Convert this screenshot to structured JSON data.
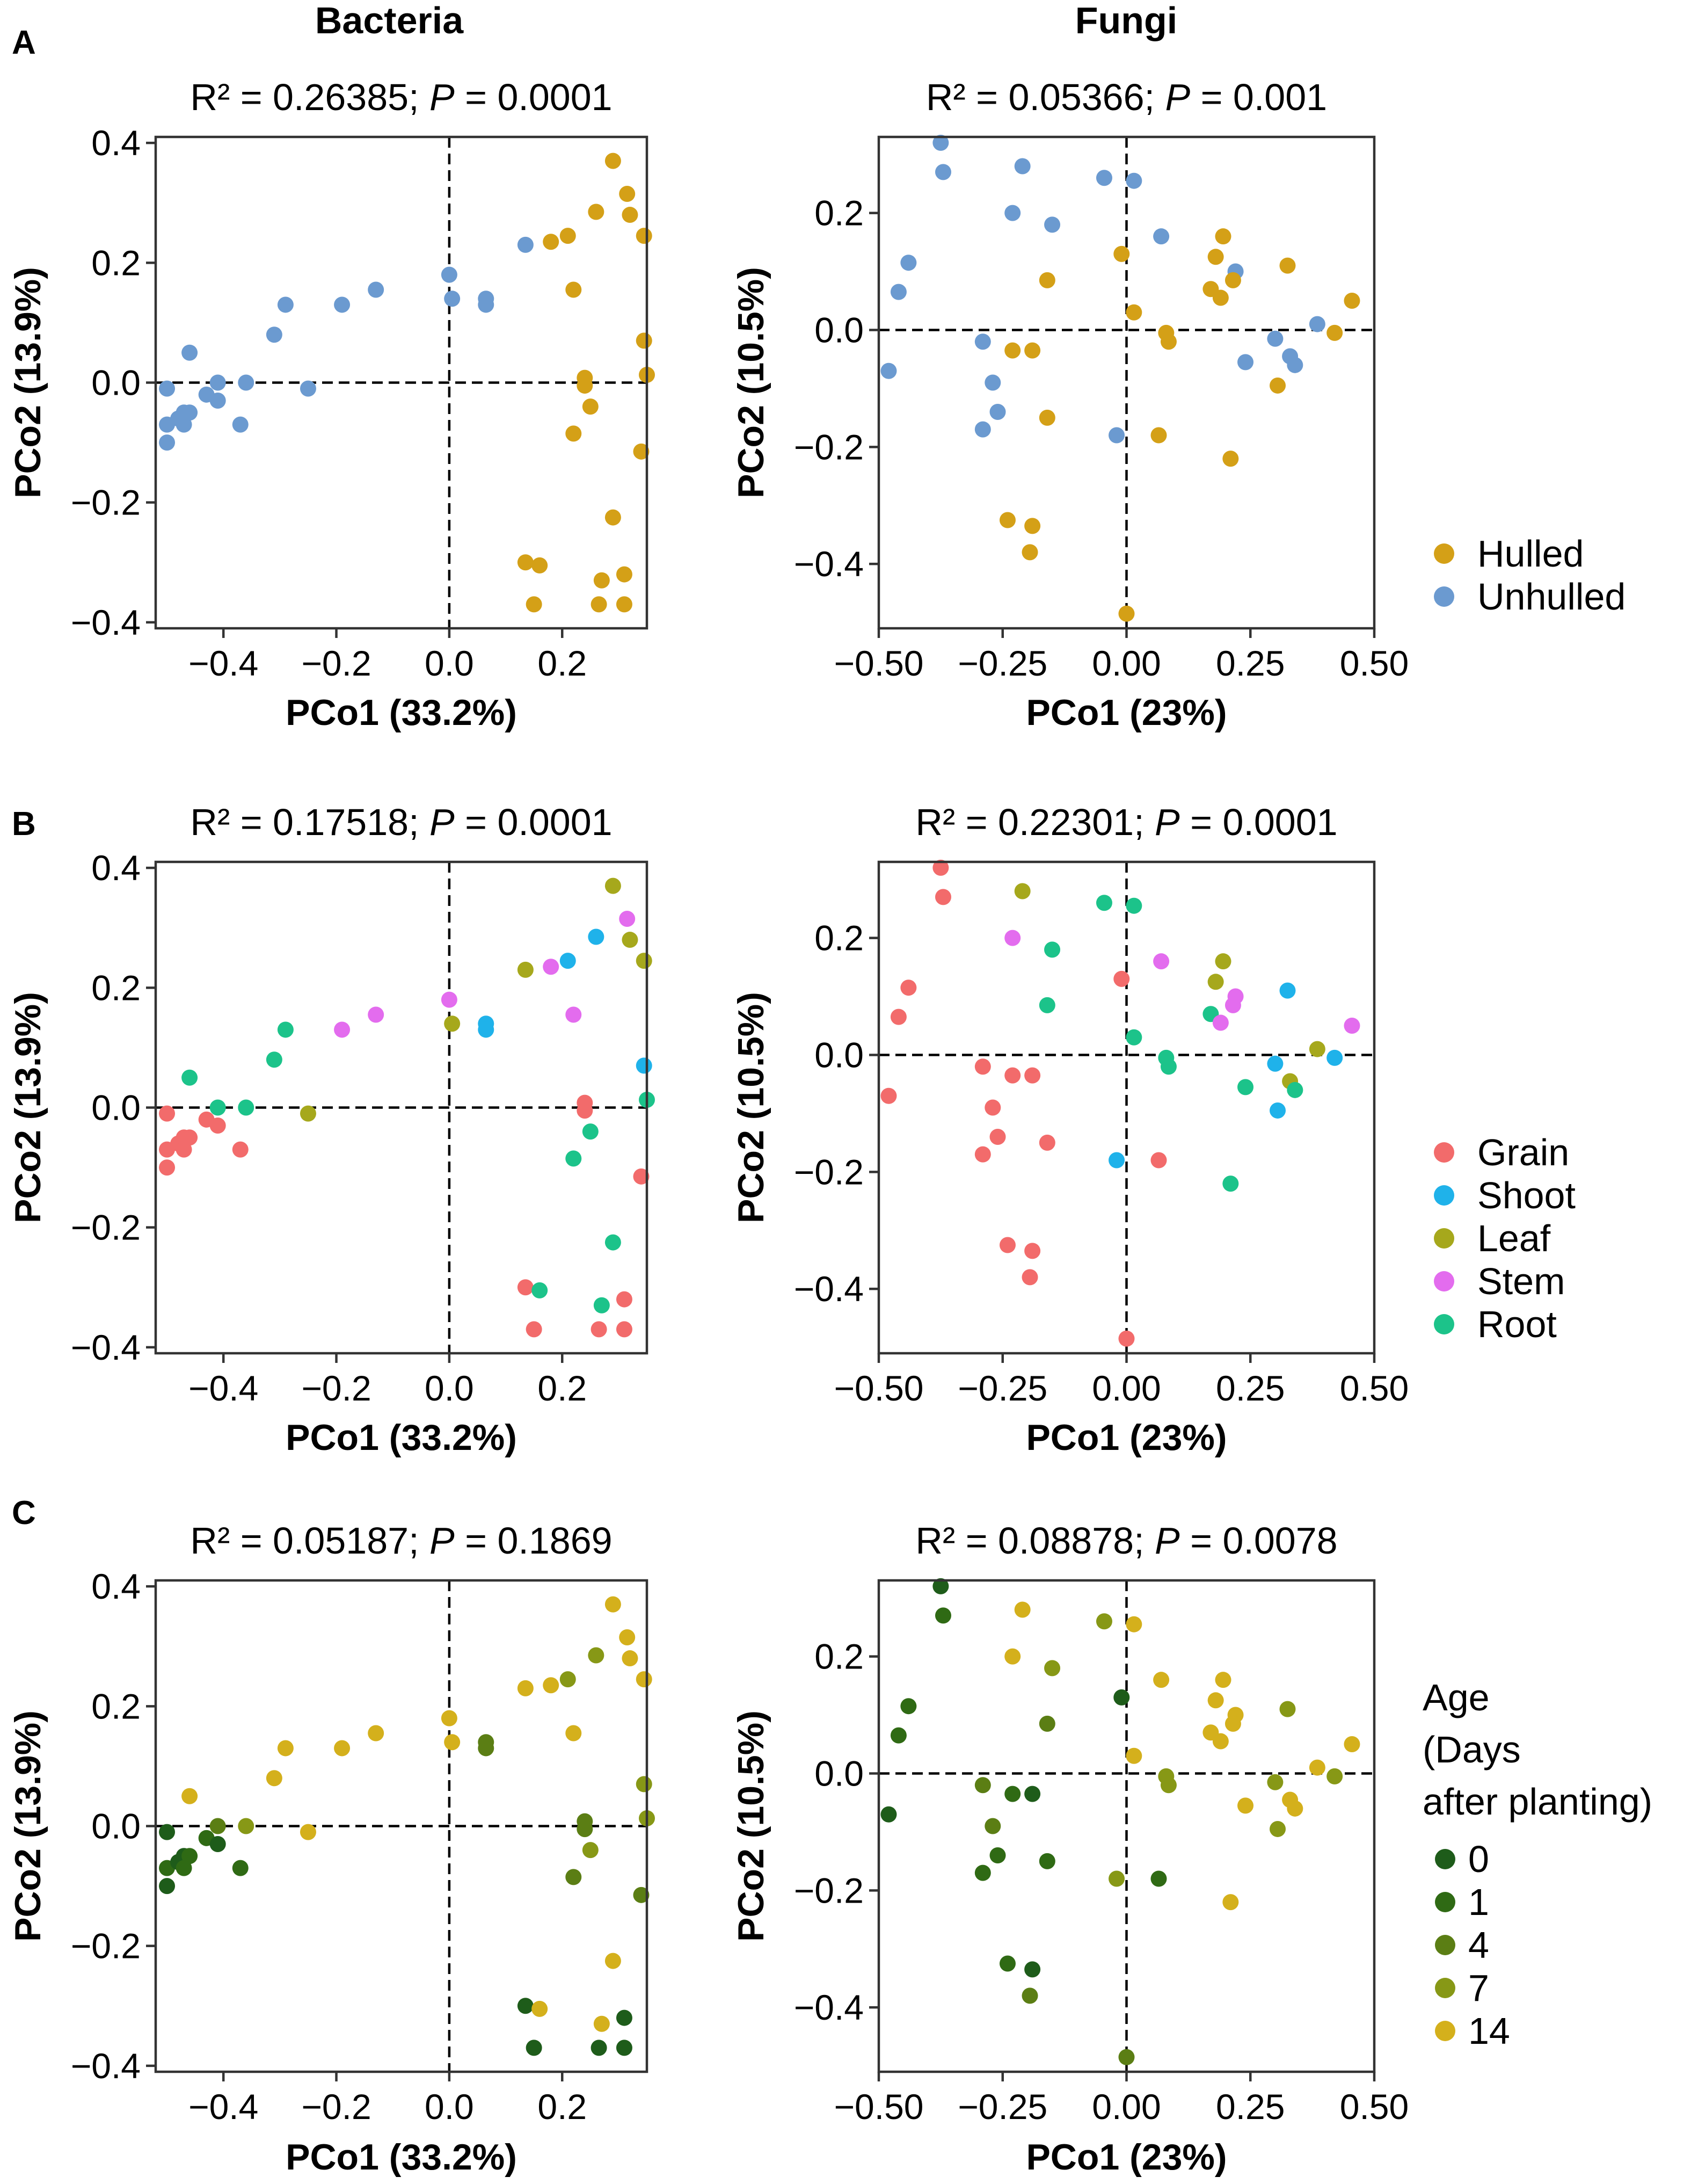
{
  "column_titles": [
    "Bacteria",
    "Fungi"
  ],
  "panel_labels": [
    "A",
    "B",
    "C"
  ],
  "palettes": {
    "type": {
      "Hulled": "#D4A017",
      "Unhulled": "#6B9AD0"
    },
    "compartment": {
      "Grain": "#F26B6B",
      "Shoot": "#1FB2EA",
      "Leaf": "#A6A81C",
      "Stem": "#E36CEE",
      "Root": "#1CC38A"
    },
    "age": {
      "0": "#1E5C1A",
      "1": "#2F6A14",
      "4": "#5B7E14",
      "7": "#879816",
      "14": "#D4B01C"
    }
  },
  "legends": {
    "A": {
      "title_lines": [],
      "entries": [
        "Hulled",
        "Unhulled"
      ]
    },
    "B": {
      "title_lines": [],
      "entries": [
        "Grain",
        "Shoot",
        "Leaf",
        "Stem",
        "Root"
      ]
    },
    "C": {
      "title_lines": [
        "Age",
        "(Days",
        "after planting)"
      ],
      "entries": [
        "0",
        "1",
        "4",
        "7",
        "14"
      ]
    }
  },
  "chart_data": {
    "type": "scatter",
    "panels": [
      {
        "id": "A-bacteria",
        "row": "A",
        "col": "bacteria",
        "color_by": "type",
        "stat": {
          "prefix": "R² = 0.26385; ",
          "p_label": "P",
          "suffix": " = 0.0001"
        }
      },
      {
        "id": "A-fungi",
        "row": "A",
        "col": "fungi",
        "color_by": "type",
        "stat": {
          "prefix": "R² = 0.05366; ",
          "p_label": "P",
          "suffix": " = 0.001"
        }
      },
      {
        "id": "B-bacteria",
        "row": "B",
        "col": "bacteria",
        "color_by": "compartment",
        "stat": {
          "prefix": "R² = 0.17518; ",
          "p_label": "P",
          "suffix": " = 0.0001"
        }
      },
      {
        "id": "B-fungi",
        "row": "B",
        "col": "fungi",
        "color_by": "compartment",
        "stat": {
          "prefix": "R² = 0.22301; ",
          "p_label": "P",
          "suffix": " = 0.0001"
        }
      },
      {
        "id": "C-bacteria",
        "row": "C",
        "col": "bacteria",
        "color_by": "age",
        "stat": {
          "prefix": "R² = 0.05187; ",
          "p_label": "P",
          "suffix": " = 0.1869"
        }
      },
      {
        "id": "C-fungi",
        "row": "C",
        "col": "fungi",
        "color_by": "age",
        "stat": {
          "prefix": "R² = 0.08878; ",
          "p_label": "P",
          "suffix": " = 0.0078"
        }
      }
    ],
    "bacteria": {
      "xlabel": "PCo1 (33.2%)",
      "ylabel": "PCo2  (13.9%)",
      "xlim": [
        -0.52,
        0.35
      ],
      "ylim": [
        -0.41,
        0.41
      ],
      "xticks": [
        -0.4,
        -0.2,
        0.0,
        0.2
      ],
      "xtick_labels": [
        "−0.4",
        "−0.2",
        "0.0",
        "0.2"
      ],
      "yticks": [
        -0.4,
        -0.2,
        0.0,
        0.2,
        0.4
      ],
      "ytick_labels": [
        "−0.4",
        "−0.2",
        "0.0",
        "0.2",
        "0.4"
      ],
      "points": [
        {
          "x": -0.5,
          "y": -0.01,
          "type": "Unhulled",
          "compartment": "Grain",
          "age": "0"
        },
        {
          "x": -0.5,
          "y": -0.07,
          "type": "Unhulled",
          "compartment": "Grain",
          "age": "1"
        },
        {
          "x": -0.5,
          "y": -0.1,
          "type": "Unhulled",
          "compartment": "Grain",
          "age": "0"
        },
        {
          "x": -0.48,
          "y": -0.06,
          "type": "Unhulled",
          "compartment": "Grain",
          "age": "0"
        },
        {
          "x": -0.47,
          "y": -0.05,
          "type": "Unhulled",
          "compartment": "Grain",
          "age": "0"
        },
        {
          "x": -0.47,
          "y": -0.07,
          "type": "Unhulled",
          "compartment": "Grain",
          "age": "1"
        },
        {
          "x": -0.46,
          "y": -0.05,
          "type": "Unhulled",
          "compartment": "Grain",
          "age": "1"
        },
        {
          "x": -0.46,
          "y": 0.05,
          "type": "Unhulled",
          "compartment": "Root",
          "age": "14"
        },
        {
          "x": -0.43,
          "y": -0.02,
          "type": "Unhulled",
          "compartment": "Grain",
          "age": "1"
        },
        {
          "x": -0.41,
          "y": 0.0,
          "type": "Unhulled",
          "compartment": "Root",
          "age": "4"
        },
        {
          "x": -0.41,
          "y": -0.03,
          "type": "Unhulled",
          "compartment": "Grain",
          "age": "0"
        },
        {
          "x": -0.37,
          "y": -0.07,
          "type": "Unhulled",
          "compartment": "Grain",
          "age": "1"
        },
        {
          "x": -0.36,
          "y": 0.0,
          "type": "Unhulled",
          "compartment": "Root",
          "age": "7"
        },
        {
          "x": -0.31,
          "y": 0.08,
          "type": "Unhulled",
          "compartment": "Root",
          "age": "14"
        },
        {
          "x": -0.29,
          "y": 0.13,
          "type": "Unhulled",
          "compartment": "Root",
          "age": "14"
        },
        {
          "x": -0.25,
          "y": -0.01,
          "type": "Unhulled",
          "compartment": "Leaf",
          "age": "14"
        },
        {
          "x": -0.19,
          "y": 0.13,
          "type": "Unhulled",
          "compartment": "Stem",
          "age": "14"
        },
        {
          "x": -0.13,
          "y": 0.155,
          "type": "Unhulled",
          "compartment": "Stem",
          "age": "14"
        },
        {
          "x": 0.0,
          "y": 0.18,
          "type": "Unhulled",
          "compartment": "Stem",
          "age": "14"
        },
        {
          "x": 0.005,
          "y": 0.14,
          "type": "Unhulled",
          "compartment": "Leaf",
          "age": "14"
        },
        {
          "x": 0.065,
          "y": 0.14,
          "type": "Unhulled",
          "compartment": "Shoot",
          "age": "4"
        },
        {
          "x": 0.065,
          "y": 0.13,
          "type": "Unhulled",
          "compartment": "Shoot",
          "age": "4"
        },
        {
          "x": 0.135,
          "y": 0.23,
          "type": "Unhulled",
          "compartment": "Leaf",
          "age": "14"
        },
        {
          "x": 0.18,
          "y": 0.235,
          "type": "Hulled",
          "compartment": "Stem",
          "age": "14"
        },
        {
          "x": 0.21,
          "y": 0.245,
          "type": "Hulled",
          "compartment": "Shoot",
          "age": "7"
        },
        {
          "x": 0.22,
          "y": 0.155,
          "type": "Hulled",
          "compartment": "Stem",
          "age": "14"
        },
        {
          "x": 0.26,
          "y": 0.285,
          "type": "Hulled",
          "compartment": "Shoot",
          "age": "7"
        },
        {
          "x": 0.29,
          "y": 0.37,
          "type": "Hulled",
          "compartment": "Leaf",
          "age": "14"
        },
        {
          "x": 0.315,
          "y": 0.315,
          "type": "Hulled",
          "compartment": "Stem",
          "age": "14"
        },
        {
          "x": 0.32,
          "y": 0.28,
          "type": "Hulled",
          "compartment": "Leaf",
          "age": "14"
        },
        {
          "x": 0.345,
          "y": 0.245,
          "type": "Hulled",
          "compartment": "Leaf",
          "age": "14"
        },
        {
          "x": 0.345,
          "y": 0.07,
          "type": "Hulled",
          "compartment": "Shoot",
          "age": "7"
        },
        {
          "x": 0.35,
          "y": 0.013,
          "type": "Hulled",
          "compartment": "Root",
          "age": "7"
        },
        {
          "x": 0.24,
          "y": 0.008,
          "type": "Hulled",
          "compartment": "Grain",
          "age": "4"
        },
        {
          "x": 0.24,
          "y": -0.005,
          "type": "Hulled",
          "compartment": "Grain",
          "age": "4"
        },
        {
          "x": 0.25,
          "y": -0.04,
          "type": "Hulled",
          "compartment": "Root",
          "age": "7"
        },
        {
          "x": 0.22,
          "y": -0.085,
          "type": "Hulled",
          "compartment": "Root",
          "age": "4"
        },
        {
          "x": 0.34,
          "y": -0.115,
          "type": "Hulled",
          "compartment": "Grain",
          "age": "4"
        },
        {
          "x": 0.29,
          "y": -0.225,
          "type": "Hulled",
          "compartment": "Root",
          "age": "14"
        },
        {
          "x": 0.135,
          "y": -0.3,
          "type": "Hulled",
          "compartment": "Grain",
          "age": "0"
        },
        {
          "x": 0.16,
          "y": -0.305,
          "type": "Hulled",
          "compartment": "Root",
          "age": "14"
        },
        {
          "x": 0.15,
          "y": -0.37,
          "type": "Hulled",
          "compartment": "Grain",
          "age": "0"
        },
        {
          "x": 0.27,
          "y": -0.33,
          "type": "Hulled",
          "compartment": "Root",
          "age": "14"
        },
        {
          "x": 0.31,
          "y": -0.32,
          "type": "Hulled",
          "compartment": "Grain",
          "age": "0"
        },
        {
          "x": 0.265,
          "y": -0.37,
          "type": "Hulled",
          "compartment": "Grain",
          "age": "0"
        },
        {
          "x": 0.31,
          "y": -0.37,
          "type": "Hulled",
          "compartment": "Grain",
          "age": "0"
        }
      ]
    },
    "fungi": {
      "xlabel": "PCo1 (23%)",
      "ylabel": "PCo2  (10.5%)",
      "xlim": [
        -0.5,
        0.5
      ],
      "ylim": [
        -0.51,
        0.33
      ],
      "xticks": [
        -0.5,
        -0.25,
        0.0,
        0.25,
        0.5
      ],
      "xtick_labels": [
        "−0.50",
        "−0.25",
        "0.00",
        "0.25",
        "0.50"
      ],
      "yticks": [
        -0.4,
        -0.2,
        0.0,
        0.2
      ],
      "ytick_labels": [
        "−0.4",
        "−0.2",
        "0.0",
        "0.2"
      ],
      "points": [
        {
          "x": -0.48,
          "y": -0.07,
          "type": "Unhulled",
          "compartment": "Grain",
          "age": "0"
        },
        {
          "x": -0.46,
          "y": 0.065,
          "type": "Unhulled",
          "compartment": "Grain",
          "age": "1"
        },
        {
          "x": -0.44,
          "y": 0.115,
          "type": "Unhulled",
          "compartment": "Grain",
          "age": "1"
        },
        {
          "x": -0.375,
          "y": 0.32,
          "type": "Unhulled",
          "compartment": "Grain",
          "age": "0"
        },
        {
          "x": -0.37,
          "y": 0.27,
          "type": "Unhulled",
          "compartment": "Grain",
          "age": "1"
        },
        {
          "x": -0.29,
          "y": -0.02,
          "type": "Unhulled",
          "compartment": "Grain",
          "age": "4"
        },
        {
          "x": -0.27,
          "y": -0.09,
          "type": "Unhulled",
          "compartment": "Grain",
          "age": "4"
        },
        {
          "x": -0.29,
          "y": -0.17,
          "type": "Unhulled",
          "compartment": "Grain",
          "age": "1"
        },
        {
          "x": -0.26,
          "y": -0.14,
          "type": "Unhulled",
          "compartment": "Grain",
          "age": "1"
        },
        {
          "x": -0.23,
          "y": 0.2,
          "type": "Unhulled",
          "compartment": "Stem",
          "age": "14"
        },
        {
          "x": -0.21,
          "y": 0.28,
          "type": "Unhulled",
          "compartment": "Leaf",
          "age": "14"
        },
        {
          "x": -0.15,
          "y": 0.18,
          "type": "Unhulled",
          "compartment": "Root",
          "age": "7"
        },
        {
          "x": -0.045,
          "y": 0.26,
          "type": "Unhulled",
          "compartment": "Root",
          "age": "7"
        },
        {
          "x": 0.015,
          "y": 0.255,
          "type": "Unhulled",
          "compartment": "Root",
          "age": "14"
        },
        {
          "x": 0.07,
          "y": 0.16,
          "type": "Unhulled",
          "compartment": "Stem",
          "age": "14"
        },
        {
          "x": -0.02,
          "y": -0.18,
          "type": "Unhulled",
          "compartment": "Shoot",
          "age": "7"
        },
        {
          "x": 0.22,
          "y": 0.1,
          "type": "Unhulled",
          "compartment": "Stem",
          "age": "14"
        },
        {
          "x": 0.24,
          "y": -0.055,
          "type": "Unhulled",
          "compartment": "Root",
          "age": "14"
        },
        {
          "x": 0.3,
          "y": -0.015,
          "type": "Unhulled",
          "compartment": "Shoot",
          "age": "7"
        },
        {
          "x": 0.33,
          "y": -0.045,
          "type": "Unhulled",
          "compartment": "Leaf",
          "age": "14"
        },
        {
          "x": 0.34,
          "y": -0.06,
          "type": "Unhulled",
          "compartment": "Root",
          "age": "14"
        },
        {
          "x": 0.385,
          "y": 0.01,
          "type": "Unhulled",
          "compartment": "Leaf",
          "age": "14"
        },
        {
          "x": -0.23,
          "y": -0.035,
          "type": "Hulled",
          "compartment": "Grain",
          "age": "1"
        },
        {
          "x": -0.19,
          "y": -0.035,
          "type": "Hulled",
          "compartment": "Grain",
          "age": "0"
        },
        {
          "x": -0.16,
          "y": 0.085,
          "type": "Hulled",
          "compartment": "Root",
          "age": "4"
        },
        {
          "x": -0.16,
          "y": -0.15,
          "type": "Hulled",
          "compartment": "Grain",
          "age": "1"
        },
        {
          "x": -0.24,
          "y": -0.325,
          "type": "Hulled",
          "compartment": "Grain",
          "age": "1"
        },
        {
          "x": -0.19,
          "y": -0.335,
          "type": "Hulled",
          "compartment": "Grain",
          "age": "0"
        },
        {
          "x": -0.195,
          "y": -0.38,
          "type": "Hulled",
          "compartment": "Grain",
          "age": "4"
        },
        {
          "x": -0.01,
          "y": 0.13,
          "type": "Hulled",
          "compartment": "Grain",
          "age": "0"
        },
        {
          "x": 0.015,
          "y": 0.03,
          "type": "Hulled",
          "compartment": "Root",
          "age": "14"
        },
        {
          "x": 0.065,
          "y": -0.18,
          "type": "Hulled",
          "compartment": "Grain",
          "age": "1"
        },
        {
          "x": 0.08,
          "y": -0.005,
          "type": "Hulled",
          "compartment": "Root",
          "age": "7"
        },
        {
          "x": 0.085,
          "y": -0.02,
          "type": "Hulled",
          "compartment": "Root",
          "age": "7"
        },
        {
          "x": 0.17,
          "y": 0.07,
          "type": "Hulled",
          "compartment": "Root",
          "age": "14"
        },
        {
          "x": 0.18,
          "y": 0.125,
          "type": "Hulled",
          "compartment": "Leaf",
          "age": "14"
        },
        {
          "x": 0.19,
          "y": 0.055,
          "type": "Hulled",
          "compartment": "Stem",
          "age": "14"
        },
        {
          "x": 0.195,
          "y": 0.16,
          "type": "Hulled",
          "compartment": "Leaf",
          "age": "14"
        },
        {
          "x": 0.215,
          "y": 0.085,
          "type": "Hulled",
          "compartment": "Stem",
          "age": "14"
        },
        {
          "x": 0.21,
          "y": -0.22,
          "type": "Hulled",
          "compartment": "Root",
          "age": "14"
        },
        {
          "x": 0.305,
          "y": -0.095,
          "type": "Hulled",
          "compartment": "Shoot",
          "age": "7"
        },
        {
          "x": 0.325,
          "y": 0.11,
          "type": "Hulled",
          "compartment": "Shoot",
          "age": "7"
        },
        {
          "x": 0.42,
          "y": -0.005,
          "type": "Hulled",
          "compartment": "Shoot",
          "age": "7"
        },
        {
          "x": 0.455,
          "y": 0.05,
          "type": "Hulled",
          "compartment": "Stem",
          "age": "14"
        },
        {
          "x": 0.0,
          "y": -0.485,
          "type": "Hulled",
          "compartment": "Grain",
          "age": "4"
        }
      ]
    }
  }
}
